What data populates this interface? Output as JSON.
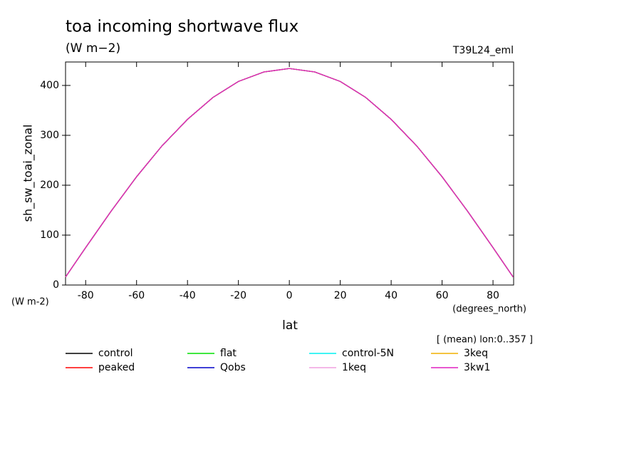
{
  "chart_data": {
    "type": "line",
    "title": "toa incoming shortwave flux",
    "subtitle": "(W m−2)",
    "experiment": "T39L24_eml",
    "ylabel": "sh_sw_toai_zonal",
    "y_units": "(W m-2)",
    "x_units": "(degrees_north)",
    "xlabel": "lat",
    "note": "[ (mean) lon:0..357 ]",
    "x": [
      -87.9,
      -80,
      -70,
      -60,
      -50,
      -40,
      -30,
      -20,
      -10,
      0,
      10,
      20,
      30,
      40,
      50,
      60,
      70,
      80,
      87.9
    ],
    "series": [
      {
        "name": "control",
        "color": "#000000",
        "values": [
          16,
          75,
          148,
          217,
          279,
          332,
          376,
          408,
          427,
          434,
          427,
          408,
          376,
          332,
          279,
          217,
          148,
          75,
          16
        ]
      },
      {
        "name": "peaked",
        "color": "#ff0000",
        "values": [
          16,
          75,
          148,
          217,
          279,
          332,
          376,
          408,
          427,
          434,
          427,
          408,
          376,
          332,
          279,
          217,
          148,
          75,
          16
        ]
      },
      {
        "name": "flat",
        "color": "#00e000",
        "values": [
          16,
          75,
          148,
          217,
          279,
          332,
          376,
          408,
          427,
          434,
          427,
          408,
          376,
          332,
          279,
          217,
          148,
          75,
          16
        ]
      },
      {
        "name": "Qobs",
        "color": "#0000c8",
        "values": [
          16,
          75,
          148,
          217,
          279,
          332,
          376,
          408,
          427,
          434,
          427,
          408,
          376,
          332,
          279,
          217,
          148,
          75,
          16
        ]
      },
      {
        "name": "control-5N",
        "color": "#00f0f0",
        "values": [
          16,
          75,
          148,
          217,
          279,
          332,
          376,
          408,
          427,
          434,
          427,
          408,
          376,
          332,
          279,
          217,
          148,
          75,
          16
        ]
      },
      {
        "name": "1keq",
        "color": "#f0a0e0",
        "values": [
          16,
          75,
          148,
          217,
          279,
          332,
          376,
          408,
          427,
          434,
          427,
          408,
          376,
          332,
          279,
          217,
          148,
          75,
          16
        ]
      },
      {
        "name": "3keq",
        "color": "#f0b000",
        "values": [
          16,
          75,
          148,
          217,
          279,
          332,
          376,
          408,
          427,
          434,
          427,
          408,
          376,
          332,
          279,
          217,
          148,
          75,
          16
        ]
      },
      {
        "name": "3kw1",
        "color": "#e020c0",
        "values": [
          16,
          75,
          148,
          217,
          279,
          332,
          376,
          408,
          427,
          434,
          427,
          408,
          376,
          332,
          279,
          217,
          148,
          75,
          16
        ]
      }
    ],
    "xlim": [
      -87.9,
      88.1
    ],
    "ylim": [
      0,
      447
    ],
    "xticks": [
      -80,
      -60,
      -40,
      -20,
      0,
      20,
      40,
      60,
      80
    ],
    "yticks": [
      0,
      100,
      200,
      300,
      400
    ]
  }
}
